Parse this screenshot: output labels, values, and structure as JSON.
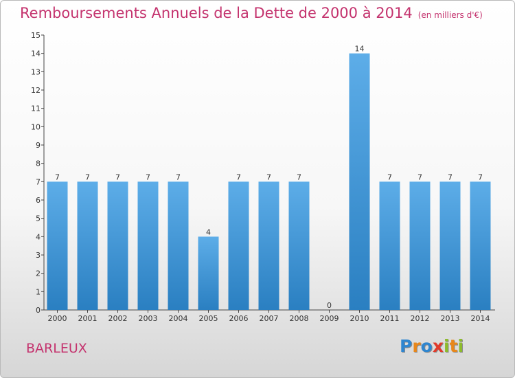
{
  "title": "Remboursements Annuels de la Dette de 2000 à 2014",
  "title_unit": "(en milliers d'€)",
  "commune": "BARLEUX",
  "logo": {
    "letters": [
      "P",
      "r",
      "o",
      "x",
      "i",
      "t",
      "i"
    ],
    "colors": [
      "#2f86d0",
      "#e8871b",
      "#2f86d0",
      "#e23a2a",
      "#8dbb2b",
      "#e8871b",
      "#8dbb2b"
    ]
  },
  "colors": {
    "bar_light": "#5dade8",
    "bar_dark": "#2a7fc1",
    "text": "#c4336e"
  },
  "chart_data": {
    "type": "bar",
    "categories": [
      "2000",
      "2001",
      "2002",
      "2003",
      "2004",
      "2005",
      "2006",
      "2007",
      "2008",
      "2009",
      "2010",
      "2011",
      "2012",
      "2013",
      "2014"
    ],
    "values": [
      7,
      7,
      7,
      7,
      7,
      4,
      7,
      7,
      7,
      0,
      14,
      7,
      7,
      7,
      7
    ],
    "data_labels": [
      "7",
      "7",
      "7",
      "7",
      "7",
      "4",
      "7",
      "7",
      "7",
      "0",
      "14",
      "7",
      "7",
      "7",
      "7"
    ],
    "ylim": [
      0,
      15
    ],
    "yticks": [
      "0",
      "1",
      "2",
      "3",
      "4",
      "5",
      "6",
      "7",
      "8",
      "9",
      "10",
      "11",
      "12",
      "13",
      "14",
      "15"
    ],
    "grid": false
  }
}
